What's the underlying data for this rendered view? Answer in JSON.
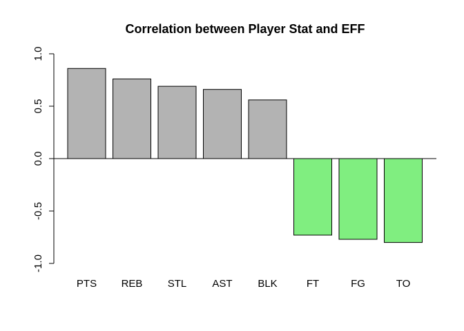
{
  "chart_data": {
    "type": "bar",
    "title": "Correlation between Player Stat and EFF",
    "xlabel": "",
    "ylabel": "",
    "categories": [
      "PTS",
      "REB",
      "STL",
      "AST",
      "BLK",
      "FT",
      "FG",
      "TO"
    ],
    "values": [
      0.86,
      0.76,
      0.69,
      0.66,
      0.56,
      -0.73,
      -0.77,
      -0.8
    ],
    "ylim": [
      -1.0,
      1.0
    ],
    "yticks": [
      "-1.0",
      "-0.5",
      "0.0",
      "0.5",
      "1.0"
    ],
    "yticks_values": [
      -1.0,
      -0.5,
      0.0,
      0.5,
      1.0
    ],
    "colors": {
      "positive": "#b3b3b3",
      "negative": "#80ee80"
    },
    "grid": false,
    "legend": "none"
  }
}
